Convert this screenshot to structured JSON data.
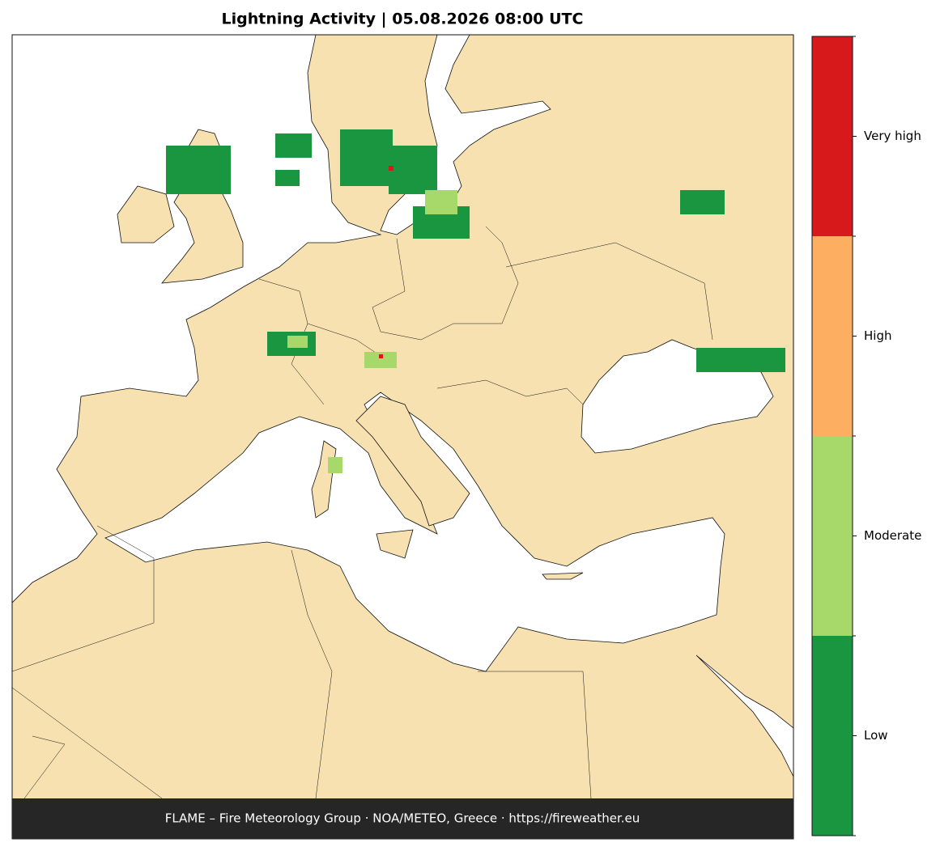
{
  "title": "Lightning Activity  |  05.08.2026 08:00 UTC",
  "footer": "FLAME – Fire Meteorology Group · NOA/METEO, Greece · https://fireweather.eu",
  "legend": {
    "levels": [
      {
        "label": "Low",
        "color": "#1a9641"
      },
      {
        "label": "Moderate",
        "color": "#a6d96a"
      },
      {
        "label": "High",
        "color": "#fdae61"
      },
      {
        "label": "Very high",
        "color": "#d7191c"
      }
    ]
  }
}
